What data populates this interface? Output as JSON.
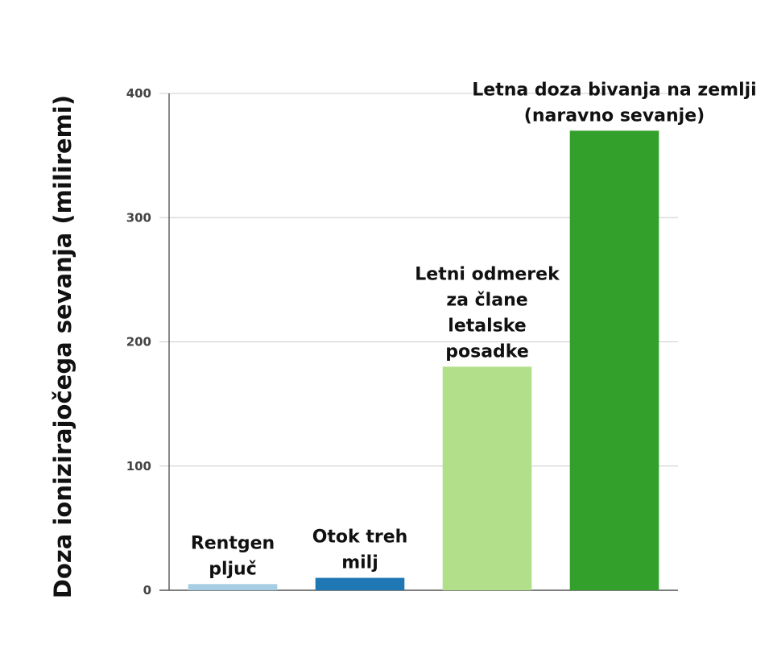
{
  "chart_data": {
    "type": "bar",
    "title": "",
    "xlabel": "",
    "ylabel": "Doza ionizirajočega sevanja (miliremi)",
    "ylim": [
      0,
      400
    ],
    "yticks": [
      0,
      100,
      200,
      300,
      400
    ],
    "grid": true,
    "categories": [
      "Rentgen pljuč",
      "Otok treh milj",
      "Letni odmerek za člane letalske posadke",
      "Letna doza bivanja na zemlji (naravno sevanje)"
    ],
    "values": [
      5,
      10,
      180,
      370
    ],
    "colors": [
      "#a6cde3",
      "#1f78b4",
      "#b2df8a",
      "#33a02c"
    ],
    "label_lines": [
      [
        "Rentgen",
        "pljuč"
      ],
      [
        "Otok treh",
        "milj"
      ],
      [
        "Letni odmerek",
        "za člane",
        "letalske",
        "posadke"
      ],
      [
        "Letna doza bivanja na zemlji",
        "(naravno sevanje)"
      ]
    ]
  }
}
